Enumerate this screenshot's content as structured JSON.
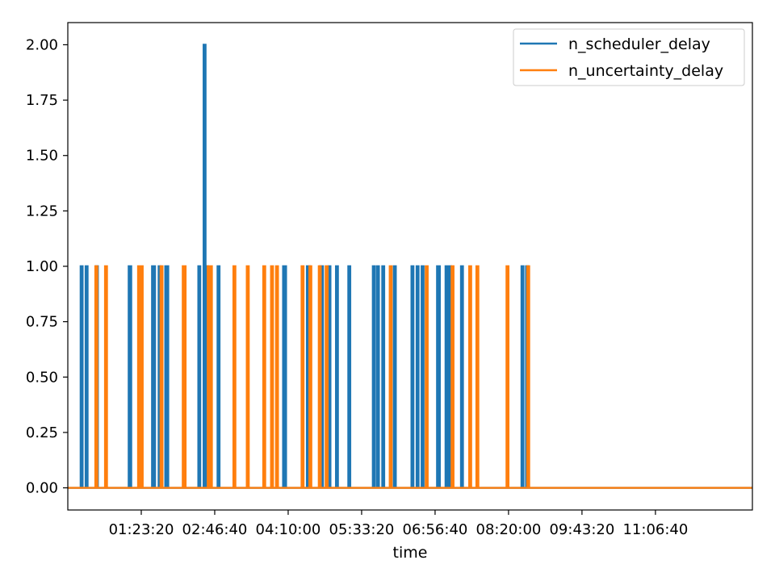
{
  "chart_data": {
    "type": "line",
    "xlabel": "time",
    "ylabel": "",
    "xlim": [
      "00:00:00",
      "12:56:40"
    ],
    "ylim": [
      -0.1,
      2.1
    ],
    "x_ticks": [
      "01:23:20",
      "02:46:40",
      "04:10:00",
      "05:33:20",
      "06:56:40",
      "08:20:00",
      "09:43:20",
      "11:06:40"
    ],
    "y_ticks": [
      "0.00",
      "0.25",
      "0.50",
      "0.75",
      "1.00",
      "1.25",
      "1.50",
      "1.75",
      "2.00"
    ],
    "grid": false,
    "legend_position": "top-right",
    "series": [
      {
        "name": "n_scheduler_delay",
        "color": "#1f77b4",
        "baseline": 0,
        "spikes": [
          {
            "time": "00:15:40",
            "value": 1
          },
          {
            "time": "00:21:20",
            "value": 1
          },
          {
            "time": "00:33:00",
            "value": 1
          },
          {
            "time": "01:10:10",
            "value": 1
          },
          {
            "time": "01:10:50",
            "value": 1
          },
          {
            "time": "01:36:40",
            "value": 1
          },
          {
            "time": "01:37:50",
            "value": 1
          },
          {
            "time": "01:44:10",
            "value": 1
          },
          {
            "time": "01:51:40",
            "value": 1
          },
          {
            "time": "01:52:50",
            "value": 1
          },
          {
            "time": "02:29:10",
            "value": 1
          },
          {
            "time": "02:35:10",
            "value": 2
          },
          {
            "time": "02:37:50",
            "value": 1
          },
          {
            "time": "02:51:00",
            "value": 1
          },
          {
            "time": "04:05:20",
            "value": 1
          },
          {
            "time": "04:06:30",
            "value": 1
          },
          {
            "time": "04:32:20",
            "value": 1
          },
          {
            "time": "04:33:30",
            "value": 1
          },
          {
            "time": "04:47:10",
            "value": 1
          },
          {
            "time": "04:48:20",
            "value": 1
          },
          {
            "time": "04:56:50",
            "value": 1
          },
          {
            "time": "05:05:20",
            "value": 1
          },
          {
            "time": "05:19:20",
            "value": 1
          },
          {
            "time": "05:47:10",
            "value": 1
          },
          {
            "time": "05:51:50",
            "value": 1
          },
          {
            "time": "05:57:50",
            "value": 1
          },
          {
            "time": "06:11:00",
            "value": 1
          },
          {
            "time": "06:31:00",
            "value": 1
          },
          {
            "time": "06:36:50",
            "value": 1
          },
          {
            "time": "06:42:30",
            "value": 1
          },
          {
            "time": "07:00:00",
            "value": 1
          },
          {
            "time": "07:01:00",
            "value": 1
          },
          {
            "time": "07:09:40",
            "value": 1
          },
          {
            "time": "07:13:40",
            "value": 1
          },
          {
            "time": "07:27:10",
            "value": 1
          },
          {
            "time": "08:35:50",
            "value": 1
          },
          {
            "time": "08:41:00",
            "value": 1
          }
        ]
      },
      {
        "name": "n_uncertainty_delay",
        "color": "#ff7f0e",
        "baseline": 0,
        "spikes": [
          {
            "time": "00:32:20",
            "value": 1
          },
          {
            "time": "00:43:20",
            "value": 1
          },
          {
            "time": "01:20:50",
            "value": 1
          },
          {
            "time": "01:23:50",
            "value": 1
          },
          {
            "time": "01:46:20",
            "value": 1
          },
          {
            "time": "02:11:30",
            "value": 1
          },
          {
            "time": "02:12:30",
            "value": 1
          },
          {
            "time": "02:39:50",
            "value": 1
          },
          {
            "time": "02:42:20",
            "value": 1
          },
          {
            "time": "03:09:00",
            "value": 1
          },
          {
            "time": "03:24:10",
            "value": 1
          },
          {
            "time": "03:42:50",
            "value": 1
          },
          {
            "time": "03:51:40",
            "value": 1
          },
          {
            "time": "03:57:20",
            "value": 1
          },
          {
            "time": "04:26:20",
            "value": 1
          },
          {
            "time": "04:35:10",
            "value": 1
          },
          {
            "time": "04:45:50",
            "value": 1
          },
          {
            "time": "04:53:40",
            "value": 1
          },
          {
            "time": "06:06:20",
            "value": 1
          },
          {
            "time": "06:47:10",
            "value": 1
          },
          {
            "time": "07:16:30",
            "value": 1
          },
          {
            "time": "07:36:30",
            "value": 1
          },
          {
            "time": "07:44:40",
            "value": 1
          },
          {
            "time": "08:18:50",
            "value": 1
          },
          {
            "time": "08:42:20",
            "value": 1
          }
        ]
      }
    ]
  }
}
